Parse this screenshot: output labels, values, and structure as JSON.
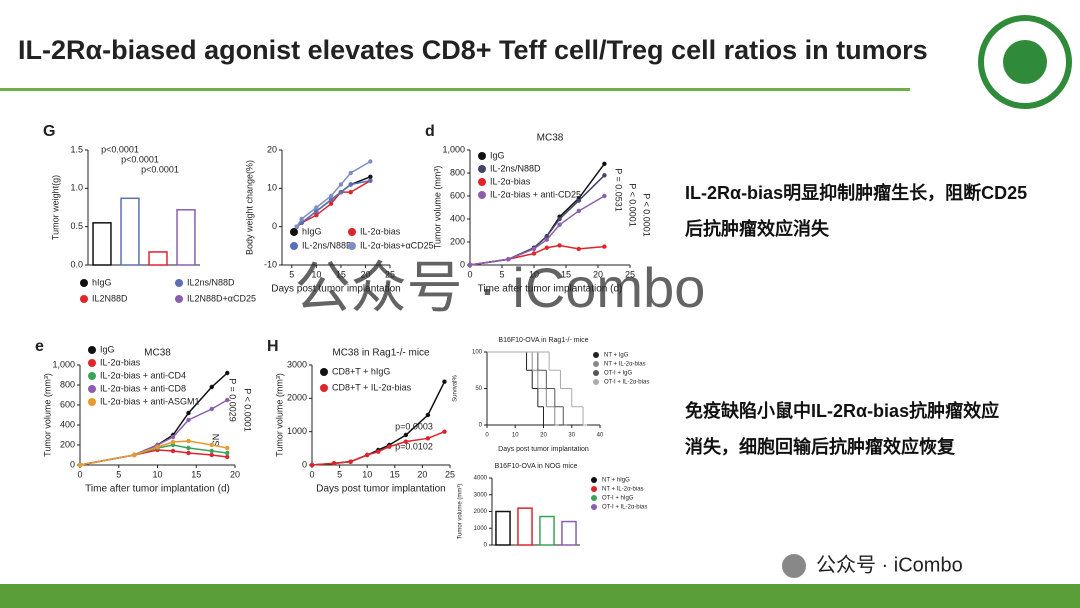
{
  "slide": {
    "title": "IL-2Rα-biased agonist elevates CD8+ Teff cell/Treg cell ratios in tumors",
    "note1": "IL-2Rα-bias明显抑制肿瘤生长，阻断CD25后抗肿瘤效应消失",
    "note2": "免疫缺陷小鼠中IL-2Rα-bias抗肿瘤效应消失，细胞回输后抗肿瘤效应恢复",
    "watermark": "公众号 · iCombo",
    "footer": "公众号 · iCombo"
  },
  "chart_data": [
    {
      "type": "bar",
      "panel": "G",
      "ylabel": "Tumor weight(g)",
      "categories": [
        "hIgG",
        "IL2ns/N88D",
        "IL2N88D",
        "IL2N88D+αCD25"
      ],
      "values": [
        0.55,
        0.87,
        0.17,
        0.72
      ],
      "colors": [
        "#111111",
        "#5b6fb5",
        "#e0242b",
        "#8b5fb0"
      ],
      "ylim": [
        0,
        1.5
      ],
      "yticks": [
        {
          "value": 0,
          "label": "0.0"
        },
        {
          "value": 0.5,
          "label": "0.5"
        },
        {
          "value": 1,
          "label": "1.0"
        },
        {
          "value": 1.5,
          "label": "1.5"
        }
      ],
      "annotations": [
        "p<0.0001",
        "p<0.0001",
        "p<0.0001"
      ]
    },
    {
      "type": "line",
      "xlabel": "Days post tumor implantation",
      "ylabel": "Body weight change(%)",
      "xlim": [
        3,
        25
      ],
      "xticks": [
        5,
        10,
        15,
        20,
        25
      ],
      "ylim": [
        -10,
        20
      ],
      "yticks": [
        -10,
        0,
        10,
        20
      ],
      "series": [
        {
          "name": "hIgG",
          "color": "#111111",
          "x": [
            6,
            7,
            10,
            13,
            15,
            17,
            21
          ],
          "values": [
            0,
            1,
            4,
            7,
            9,
            11,
            13
          ]
        },
        {
          "name": "IL-2α-bias",
          "color": "#e0242b",
          "x": [
            6,
            7,
            10,
            13,
            15,
            17,
            21
          ],
          "values": [
            0,
            1,
            3,
            6,
            9,
            9,
            12
          ]
        },
        {
          "name": "IL-2ns/N88D",
          "color": "#5b6fb5",
          "x": [
            6,
            7,
            10,
            13,
            15,
            17,
            21
          ],
          "values": [
            0,
            1,
            4,
            7,
            9,
            11,
            12
          ]
        },
        {
          "name": "IL-2α-bias+αCD25",
          "color": "#7f8fc0",
          "x": [
            6,
            7,
            10,
            13,
            15,
            17,
            21
          ],
          "values": [
            0,
            2,
            5,
            8,
            11,
            14,
            17
          ]
        }
      ]
    },
    {
      "type": "line",
      "panel": "d",
      "title": "MC38",
      "xlabel": "Time after tumor implantation (d)",
      "ylabel": "Tumor volume (mm³)",
      "xlim": [
        0,
        25
      ],
      "xticks": [
        0,
        5,
        10,
        15,
        20,
        25
      ],
      "ylim": [
        0,
        1000
      ],
      "yticks": [
        0,
        200,
        400,
        600,
        800,
        {
          "value": 1000,
          "label": "1,000"
        }
      ],
      "annotations": [
        "P = 0.0531",
        "P < 0.0001",
        "P < 0.0001"
      ],
      "series": [
        {
          "name": "IgG",
          "color": "#111111",
          "x": [
            0,
            6,
            10,
            12,
            14,
            17,
            21
          ],
          "values": [
            0,
            50,
            150,
            250,
            420,
            580,
            880
          ]
        },
        {
          "name": "IL-2ns/N88D",
          "color": "#444466",
          "x": [
            0,
            6,
            10,
            12,
            14,
            17,
            21
          ],
          "values": [
            0,
            50,
            150,
            250,
            400,
            560,
            780
          ]
        },
        {
          "name": "IL-2α-bias",
          "color": "#e0242b",
          "x": [
            0,
            6,
            10,
            12,
            14,
            17,
            21
          ],
          "values": [
            0,
            50,
            100,
            150,
            170,
            140,
            160
          ]
        },
        {
          "name": "IL-2α-bias + anti-CD25",
          "color": "#8b5fb0",
          "x": [
            0,
            6,
            10,
            12,
            14,
            17,
            21
          ],
          "values": [
            0,
            50,
            140,
            220,
            350,
            470,
            600
          ]
        }
      ]
    },
    {
      "type": "line",
      "panel": "e",
      "title": "MC38",
      "xlabel": "Time after tumor implantation (d)",
      "ylabel": "Tumor volume (mm³)",
      "xlim": [
        0,
        20
      ],
      "xticks": [
        0,
        5,
        10,
        15,
        20
      ],
      "ylim": [
        0,
        1000
      ],
      "yticks": [
        0,
        200,
        400,
        600,
        800,
        {
          "value": 1000,
          "label": "1,000"
        }
      ],
      "annotations": [
        "NS",
        "P = 0.0029",
        "P < 0.0001"
      ],
      "series": [
        {
          "name": "IgG",
          "color": "#111111",
          "x": [
            0,
            7,
            10,
            12,
            14,
            17,
            19
          ],
          "values": [
            0,
            100,
            200,
            300,
            520,
            780,
            920
          ]
        },
        {
          "name": "IL-2α-bias",
          "color": "#e0242b",
          "x": [
            0,
            7,
            10,
            12,
            14,
            17,
            19
          ],
          "values": [
            0,
            100,
            150,
            140,
            120,
            100,
            80
          ]
        },
        {
          "name": "IL-2α-bias + anti-CD4",
          "color": "#3aa35a",
          "x": [
            0,
            7,
            10,
            12,
            14,
            17,
            19
          ],
          "values": [
            0,
            100,
            170,
            200,
            170,
            140,
            120
          ]
        },
        {
          "name": "IL-2α-bias + anti-CD8",
          "color": "#8b5fb0",
          "x": [
            0,
            7,
            10,
            12,
            14,
            17,
            19
          ],
          "values": [
            0,
            100,
            200,
            280,
            450,
            560,
            650
          ]
        },
        {
          "name": "IL-2α-bias + anti-ASGM1",
          "color": "#e89a2c",
          "x": [
            0,
            7,
            10,
            12,
            14,
            17,
            19
          ],
          "values": [
            0,
            100,
            180,
            230,
            240,
            200,
            170
          ]
        }
      ]
    },
    {
      "type": "line",
      "panel": "H",
      "title": "MC38 in Rag1-/- mice",
      "xlabel": "Days post tumor implantation",
      "ylabel": "Tumor volume (mm³)",
      "xlim": [
        0,
        25
      ],
      "xticks": [
        0,
        5,
        10,
        15,
        20,
        25
      ],
      "ylim": [
        0,
        3000
      ],
      "yticks": [
        0,
        1000,
        2000,
        3000
      ],
      "annotations": [
        "p=0.0003",
        "p=0.0102"
      ],
      "series": [
        {
          "name": "CD8+T + hIgG",
          "color": "#111111",
          "x": [
            0,
            4,
            7,
            10,
            12,
            14,
            17,
            21,
            24
          ],
          "values": [
            0,
            50,
            100,
            300,
            450,
            600,
            900,
            1500,
            2500
          ]
        },
        {
          "name": "CD8+T + IL-2α-bias",
          "color": "#e0242b",
          "x": [
            0,
            4,
            7,
            10,
            12,
            14,
            17,
            21,
            24
          ],
          "values": [
            0,
            50,
            100,
            300,
            400,
            550,
            700,
            800,
            1000
          ]
        }
      ]
    },
    {
      "type": "step",
      "title": "B16F10-OVA in Rag1-/- mice",
      "xlabel": "Days post tumor implantation",
      "ylabel": "Survival%",
      "xlim": [
        0,
        40
      ],
      "xticks": [
        0,
        10,
        20,
        30,
        40
      ],
      "ylim": [
        0,
        100
      ],
      "yticks": [
        0,
        50,
        100
      ],
      "series": [
        {
          "name": "NT + IgG",
          "color": "#222222",
          "x": [
            0,
            14,
            16,
            18,
            20
          ],
          "values": [
            100,
            75,
            50,
            25,
            0
          ]
        },
        {
          "name": "NT + IL-2α-bias",
          "color": "#888888",
          "x": [
            0,
            16,
            18,
            21,
            24
          ],
          "values": [
            100,
            75,
            50,
            25,
            0
          ]
        },
        {
          "name": "OT-I + IgG",
          "color": "#555555",
          "x": [
            0,
            18,
            21,
            24,
            27
          ],
          "values": [
            100,
            75,
            50,
            25,
            0
          ]
        },
        {
          "name": "OT-I + IL-2α-bias",
          "color": "#aaaaaa",
          "x": [
            0,
            22,
            26,
            30,
            34
          ],
          "values": [
            100,
            75,
            50,
            25,
            0
          ]
        }
      ]
    },
    {
      "type": "bar",
      "title": "B16F10-OVA in NOG mice",
      "ylabel": "Tumor volume (mm³)",
      "categories": [
        "NT + hIgG",
        "NT + IL-2α-bias",
        "OT-I + hIgG",
        "OT-I + IL-2α-bias"
      ],
      "values": [
        2000,
        2200,
        1700,
        1400
      ],
      "colors": [
        "#111111",
        "#e0242b",
        "#3aa35a",
        "#8b5fb0"
      ],
      "ylim": [
        0,
        4000
      ],
      "yticks": [
        0,
        1000,
        2000,
        3000,
        4000
      ]
    }
  ]
}
